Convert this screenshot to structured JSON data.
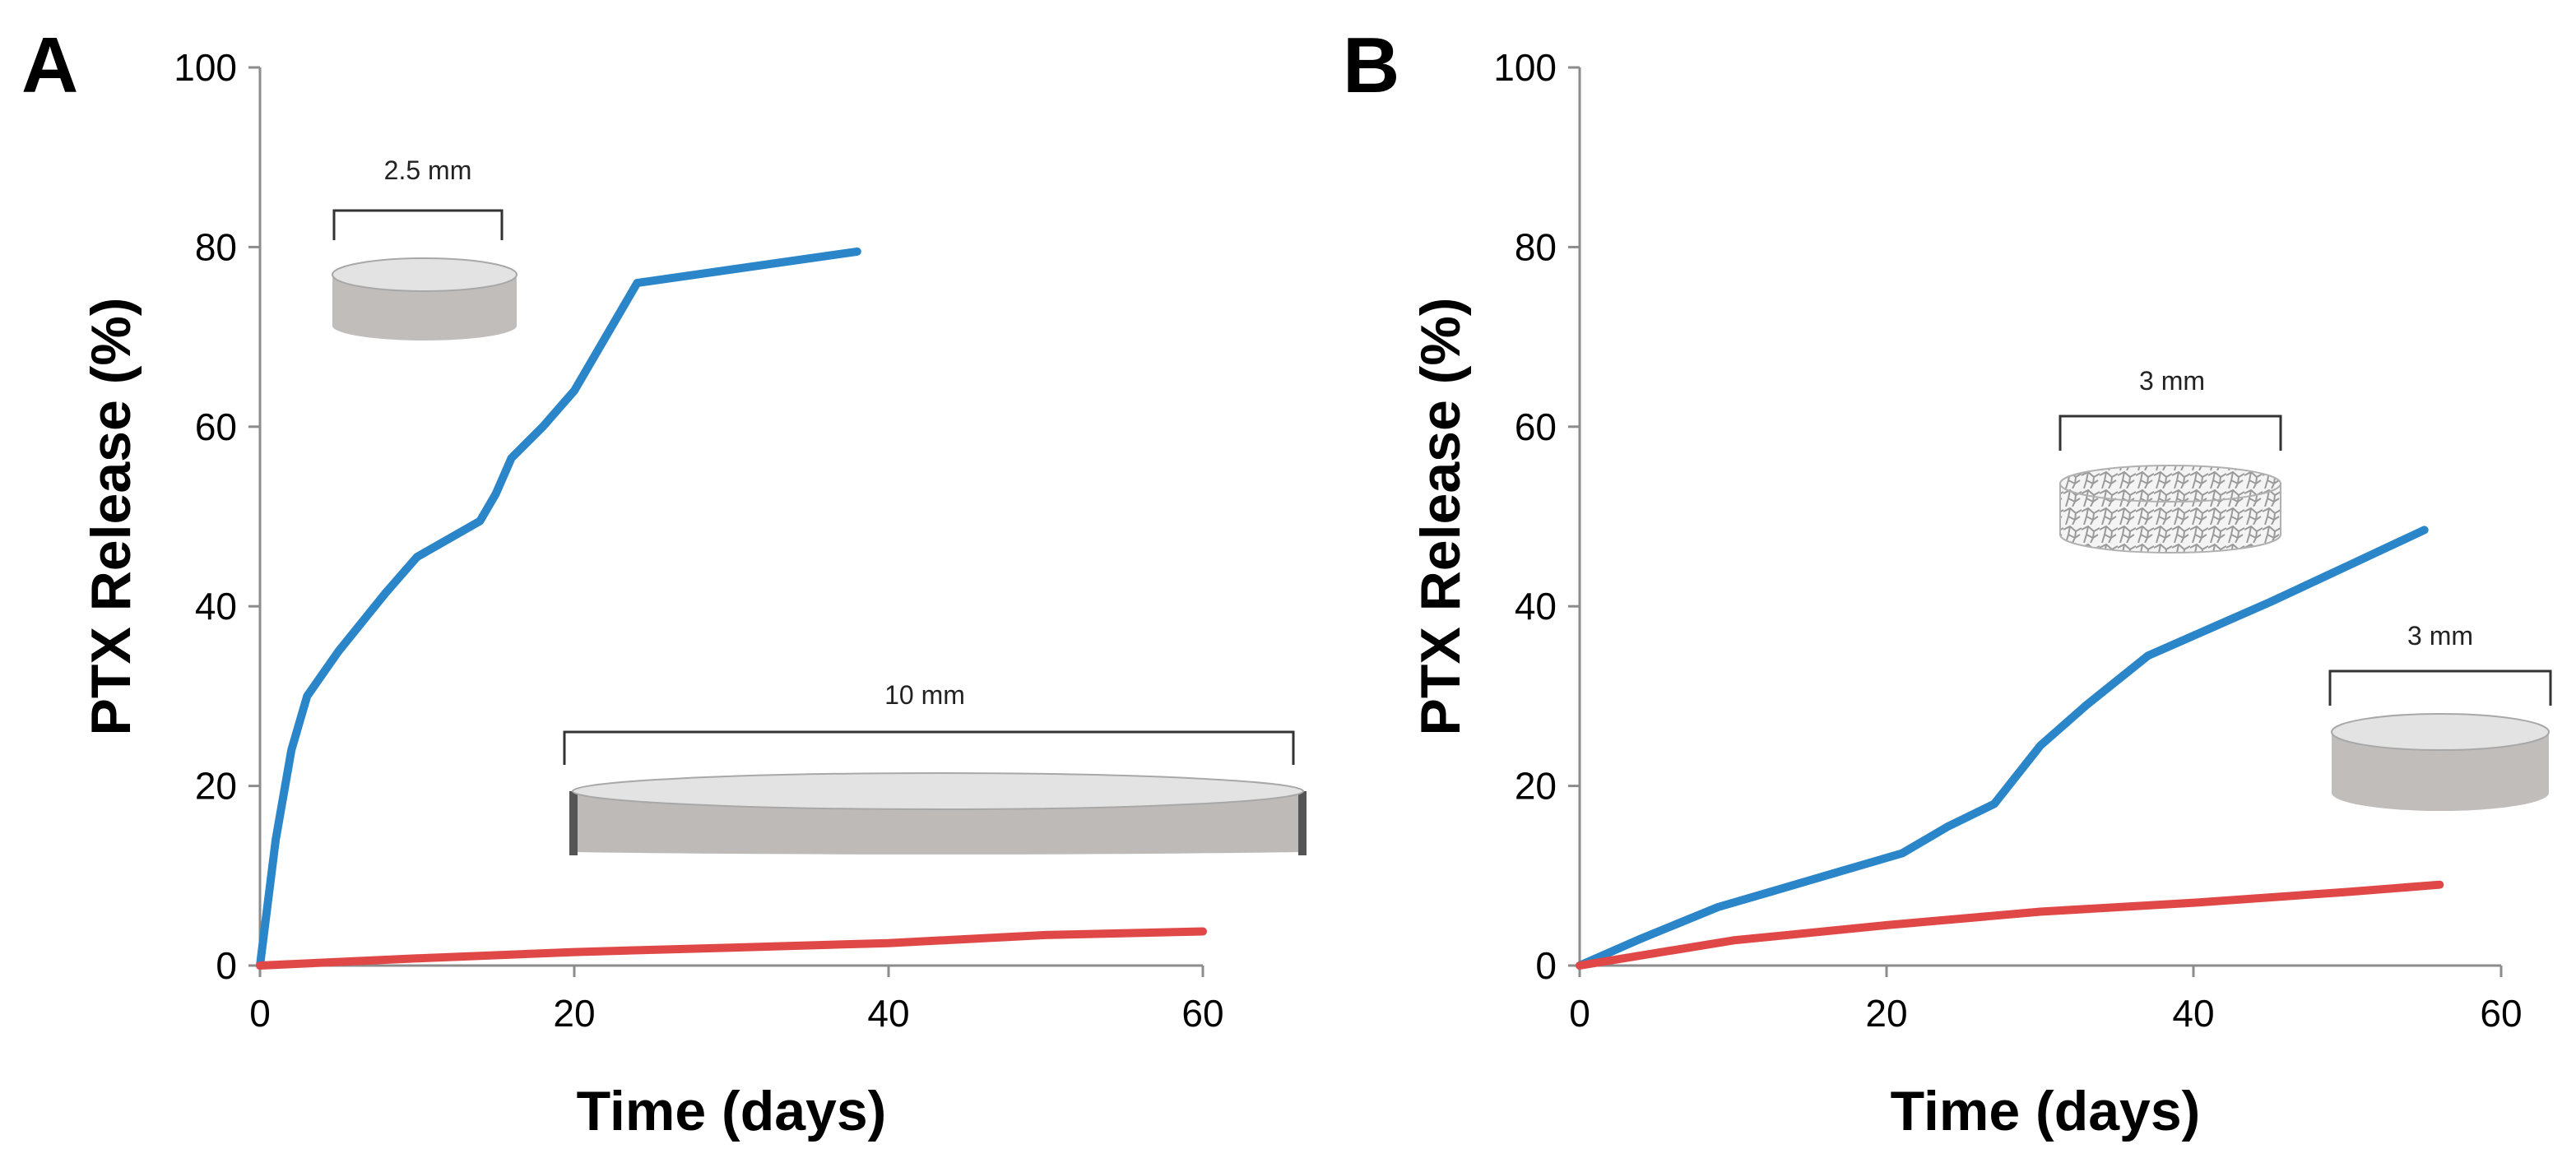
{
  "chart_data": [
    {
      "type": "line",
      "panel_label": "A",
      "xlabel": "Time (days)",
      "ylabel": "PTX Release (%)",
      "xlim": [
        0,
        60
      ],
      "ylim": [
        0,
        100
      ],
      "xticks": [
        0,
        20,
        40,
        60
      ],
      "yticks": [
        0,
        20,
        40,
        60,
        80,
        100
      ],
      "grid": false,
      "series": [
        {
          "name": "2.5 mm disc",
          "color": "#2a86c8",
          "x": [
            0,
            1,
            2,
            3,
            5,
            8,
            10,
            14,
            15,
            16,
            18,
            20,
            21,
            24,
            38
          ],
          "y": [
            0,
            14,
            24,
            30,
            35,
            41.5,
            45.5,
            49.5,
            52.5,
            56.5,
            60,
            64,
            67,
            76,
            79.5
          ]
        },
        {
          "name": "10 mm disc",
          "color": "#e04848",
          "x": [
            0,
            10,
            20,
            30,
            40,
            50,
            60
          ],
          "y": [
            0,
            0.8,
            1.5,
            2,
            2.5,
            3.4,
            3.8
          ]
        }
      ],
      "annotations": [
        {
          "label": "2.5 mm",
          "shape": "small-disc"
        },
        {
          "label": "10 mm",
          "shape": "large-disc"
        }
      ]
    },
    {
      "type": "line",
      "panel_label": "B",
      "xlabel": "Time (days)",
      "ylabel": "PTX Release (%)",
      "xlim": [
        0,
        60
      ],
      "ylim": [
        0,
        100
      ],
      "xticks": [
        0,
        20,
        40,
        60
      ],
      "yticks": [
        0,
        20,
        40,
        60,
        80,
        100
      ],
      "grid": false,
      "series": [
        {
          "name": "3 mm porous scaffold",
          "color": "#2a86c8",
          "x": [
            0,
            4,
            9,
            13,
            17,
            21,
            24,
            27,
            30,
            33,
            37,
            41,
            45,
            50,
            55
          ],
          "y": [
            0,
            3,
            6.5,
            8.5,
            10.5,
            12.5,
            15.5,
            18,
            24.5,
            29,
            34.5,
            37.5,
            40.5,
            44.5,
            48.5
          ]
        },
        {
          "name": "3 mm solid disc",
          "color": "#e04848",
          "x": [
            0,
            10,
            20,
            30,
            40,
            50,
            56
          ],
          "y": [
            0,
            2.8,
            4.5,
            6,
            7,
            8.2,
            9
          ]
        }
      ],
      "annotations": [
        {
          "label": "3 mm",
          "shape": "porous-disc"
        },
        {
          "label": "3 mm",
          "shape": "solid-disc"
        }
      ]
    }
  ]
}
